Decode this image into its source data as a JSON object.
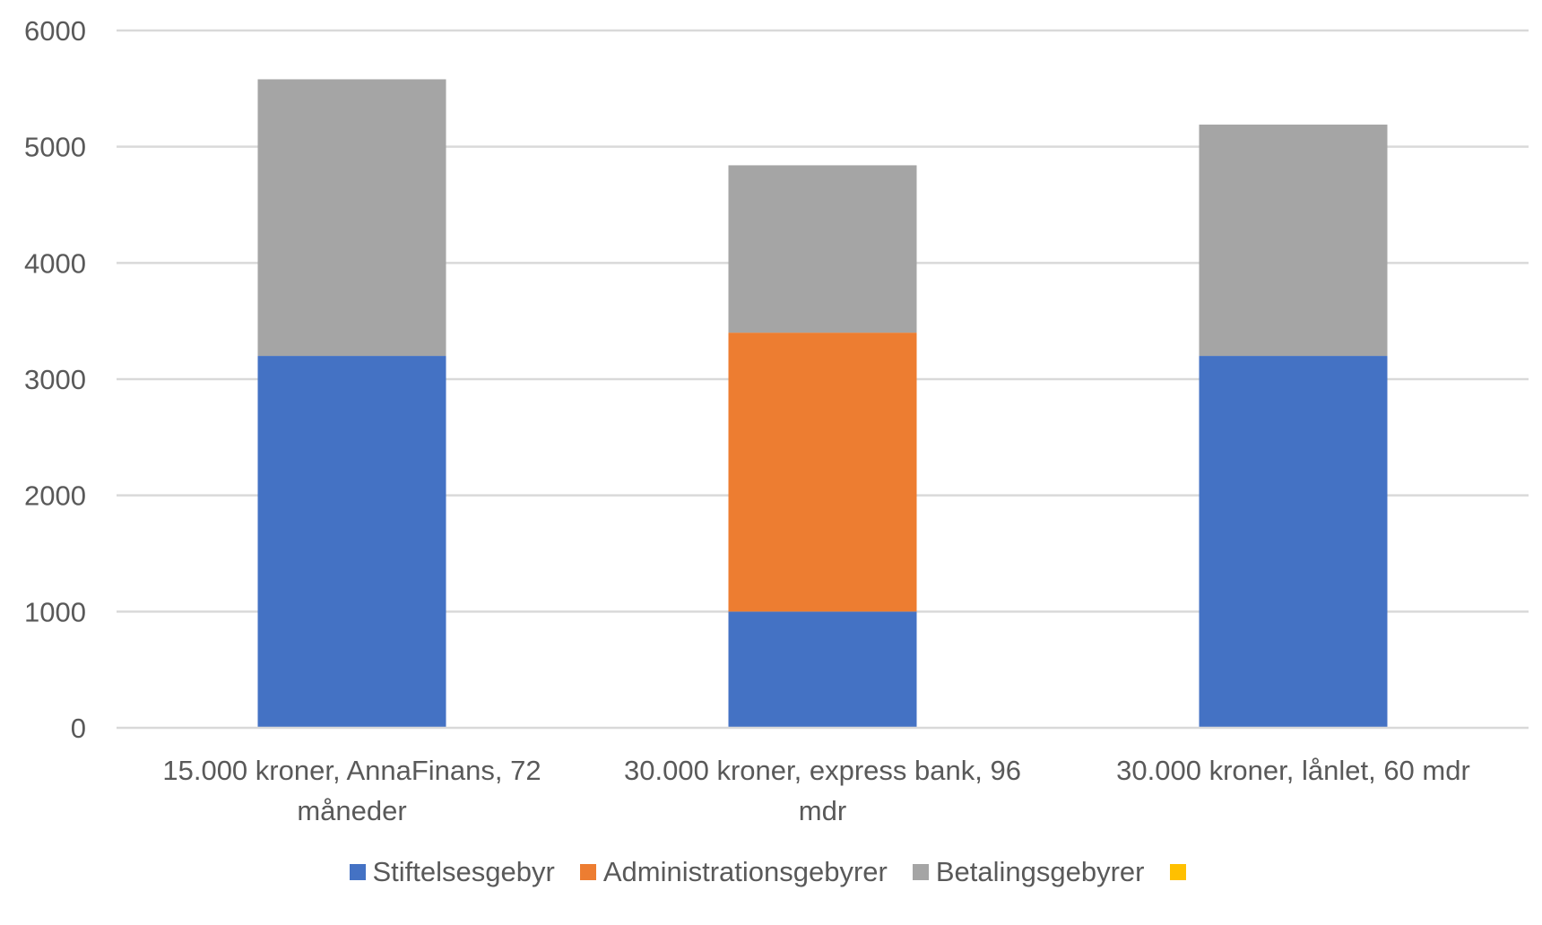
{
  "chart_data": {
    "type": "bar",
    "stacked": true,
    "title": "",
    "xlabel": "",
    "ylabel": "",
    "ylim": [
      0,
      6000
    ],
    "yticks": [
      0,
      1000,
      2000,
      3000,
      4000,
      5000,
      6000
    ],
    "grid": true,
    "legend_position": "bottom",
    "categories": [
      [
        "15.000 kroner, AnnaFinans, 72",
        "måneder"
      ],
      [
        "30.000 kroner, express bank, 96",
        "mdr"
      ],
      [
        "30.000 kroner, lånlet, 60 mdr"
      ]
    ],
    "series": [
      {
        "name": "Stiftelsesgebyr",
        "color": "#4472C4",
        "values": [
          3200,
          1000,
          3200
        ]
      },
      {
        "name": "Administrationsgebyrer",
        "color": "#ED7D31",
        "values": [
          0,
          2400,
          0
        ]
      },
      {
        "name": "Betalingsgebyrer",
        "color": "#A5A5A5",
        "values": [
          2380,
          1440,
          1990
        ]
      },
      {
        "name": "",
        "color": "#FFC000",
        "values": [
          0,
          0,
          0
        ]
      }
    ]
  }
}
